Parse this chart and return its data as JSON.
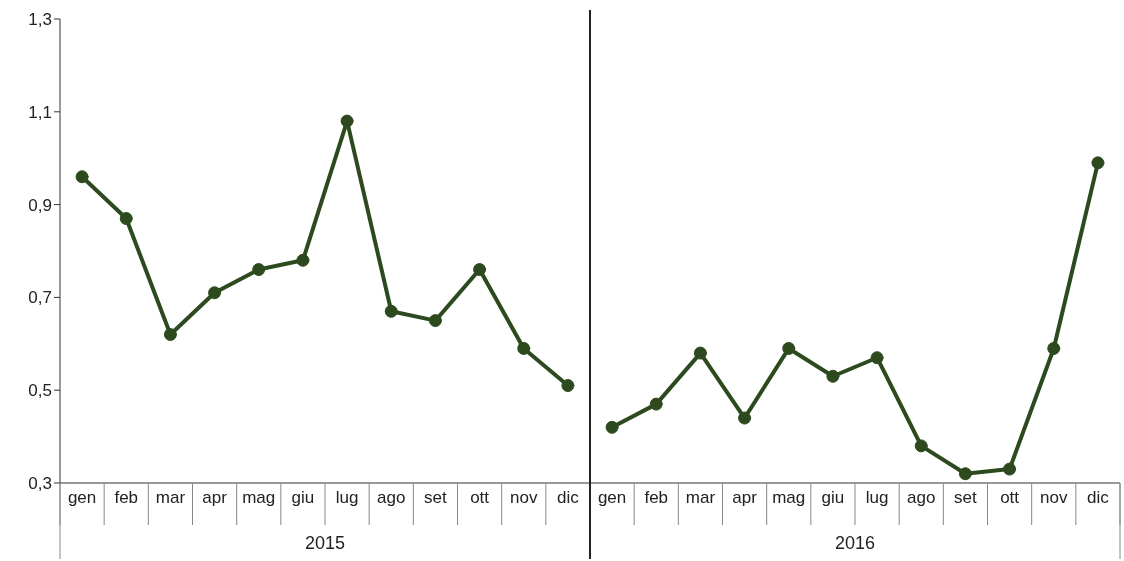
{
  "chart_data": {
    "type": "line",
    "categories": [
      "gen",
      "feb",
      "mar",
      "apr",
      "mag",
      "giu",
      "lug",
      "ago",
      "set",
      "ott",
      "nov",
      "dic",
      "gen",
      "feb",
      "mar",
      "apr",
      "mag",
      "giu",
      "lug",
      "ago",
      "set",
      "ott",
      "nov",
      "dic"
    ],
    "series": [
      {
        "color": "#2d4a1e",
        "values": [
          0.96,
          0.87,
          0.62,
          0.71,
          0.76,
          0.78,
          1.08,
          0.67,
          0.65,
          0.76,
          0.59,
          0.51,
          null,
          null,
          null,
          null,
          null,
          null,
          null,
          null,
          null,
          null,
          null,
          null
        ]
      },
      {
        "color": "#2d4a1e",
        "values": [
          null,
          null,
          null,
          null,
          null,
          null,
          null,
          null,
          null,
          null,
          null,
          null,
          0.42,
          0.47,
          0.58,
          0.44,
          0.59,
          0.53,
          0.57,
          0.38,
          0.32,
          0.33,
          0.59,
          0.99
        ]
      }
    ],
    "ylim": [
      0.3,
      1.3
    ],
    "yticks": [
      {
        "value": 0.3,
        "label": "0,3"
      },
      {
        "value": 0.5,
        "label": "0,5"
      },
      {
        "value": 0.7,
        "label": "0,7"
      },
      {
        "value": 0.9,
        "label": "0,9"
      },
      {
        "value": 1.1,
        "label": "1,1"
      },
      {
        "value": 1.3,
        "label": "1,3"
      }
    ],
    "annotations": [
      "2015",
      "2016"
    ],
    "marker": "circle",
    "line_style": "solid"
  }
}
